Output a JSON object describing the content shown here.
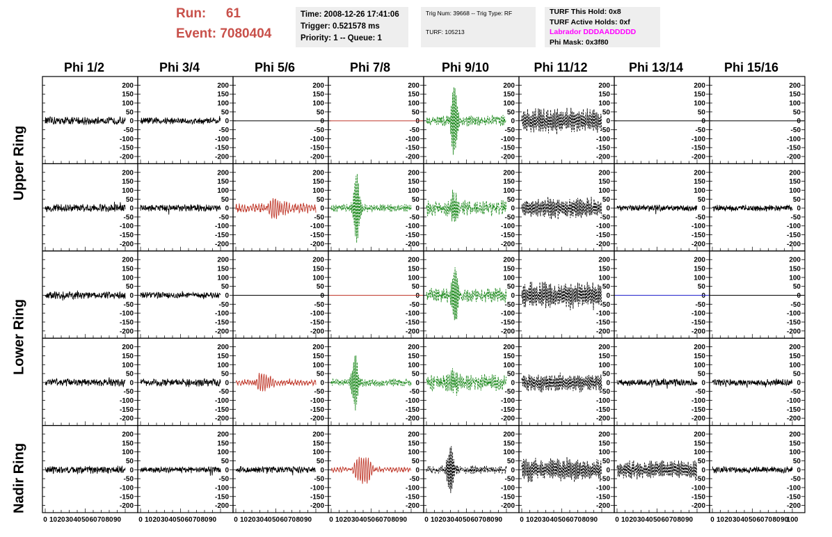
{
  "header": {
    "run_label": "Run:",
    "run_value": "61",
    "event_label": "Event:",
    "event_value": "7080404",
    "time_box": {
      "line1": "Time: 2008-12-26 17:41:06",
      "line2": "Trigger: 0.521578 ms",
      "line3": "Priority: 1 -- Queue: 1"
    },
    "trig_box": {
      "line1": "Trig Num: 39668 -- Trig Type: RF",
      "line2": "TURF: 105213"
    },
    "turf_box": {
      "line1": "TURF This Hold: 0x8",
      "line2": "TURF Active Holds: 0xf",
      "line3": "Labrador DDDAADDDDD",
      "line4": "Phi Mask: 0x3f80"
    }
  },
  "phi_headers": [
    "Phi 1/2",
    "Phi 3/4",
    "Phi 5/6",
    "Phi 7/8",
    "Phi 9/10",
    "Phi 11/12",
    "Phi 13/14",
    "Phi 15/16"
  ],
  "ring_labels": [
    "Upper Ring",
    "Lower Ring",
    "Nadir Ring"
  ],
  "colors": {
    "black": "#000000",
    "red": "#c0392b",
    "green": "#1e8a1e",
    "blue": "#2222cc",
    "run_text": "#c8504a",
    "label_magenta": "#ff00ff",
    "box_bg": "#eeeeee"
  },
  "chart_data": {
    "type": "line",
    "title": "",
    "xlabel": "",
    "ylabel": "",
    "x_range": [
      0,
      100
    ],
    "ylim": [
      -225,
      225
    ],
    "y_ticks": [
      200,
      150,
      100,
      50,
      0,
      -50,
      -100,
      -150,
      -200
    ],
    "x_ticks": [
      0,
      10,
      20,
      30,
      40,
      50,
      60,
      70,
      80,
      90,
      100
    ],
    "x_tick_labels_printed": [
      "0",
      "10",
      "20",
      "30",
      "40",
      "50",
      "60",
      "70",
      "80",
      "90",
      "100"
    ],
    "rows": 5,
    "cols": 8,
    "panels": [
      [
        {
          "color": "black",
          "style": "solid",
          "kind": "noise",
          "amp": 18
        },
        {
          "color": "black",
          "style": "solid",
          "kind": "noise",
          "amp": 16
        },
        {
          "color": "black",
          "style": "solid",
          "kind": "flat",
          "amp": 0
        },
        {
          "color": "red",
          "style": "solid",
          "kind": "flat",
          "amp": 0
        },
        {
          "color": "green",
          "style": "dashed",
          "kind": "pulse",
          "amp": 20,
          "peak": 220,
          "center": 35
        },
        {
          "color": "black",
          "style": "dashed",
          "kind": "burst",
          "amp": 60
        },
        {
          "color": "black",
          "style": "solid",
          "kind": "flat",
          "amp": 0
        },
        {
          "color": "black",
          "style": "solid",
          "kind": "flat",
          "amp": 0
        }
      ],
      [
        {
          "color": "black",
          "style": "solid",
          "kind": "noise",
          "amp": 18
        },
        {
          "color": "black",
          "style": "solid",
          "kind": "noise",
          "amp": 16
        },
        {
          "color": "red",
          "style": "solid",
          "kind": "wave",
          "amp": 30,
          "peak": 50,
          "center": 50
        },
        {
          "color": "green",
          "style": "dashed",
          "kind": "pulse",
          "amp": 14,
          "peak": 220,
          "center": 32
        },
        {
          "color": "green",
          "style": "dashed",
          "kind": "pulse",
          "amp": 28,
          "peak": 100,
          "center": 35
        },
        {
          "color": "black",
          "style": "dashed",
          "kind": "burst",
          "amp": 50
        },
        {
          "color": "black",
          "style": "solid",
          "kind": "noise",
          "amp": 14
        },
        {
          "color": "black",
          "style": "solid",
          "kind": "noise",
          "amp": 15
        }
      ],
      [
        {
          "color": "black",
          "style": "solid",
          "kind": "noise",
          "amp": 18
        },
        {
          "color": "black",
          "style": "solid",
          "kind": "noise",
          "amp": 14
        },
        {
          "color": "black",
          "style": "solid",
          "kind": "flat",
          "amp": 0
        },
        {
          "color": "red",
          "style": "solid",
          "kind": "flat",
          "amp": 0
        },
        {
          "color": "green",
          "style": "dashed",
          "kind": "pulse",
          "amp": 25,
          "peak": 200,
          "center": 36
        },
        {
          "color": "black",
          "style": "dashed",
          "kind": "burst",
          "amp": 65
        },
        {
          "color": "blue",
          "style": "solid",
          "kind": "flat",
          "amp": 0
        },
        {
          "color": "black",
          "style": "solid",
          "kind": "flat",
          "amp": 0
        }
      ],
      [
        {
          "color": "black",
          "style": "solid",
          "kind": "noise",
          "amp": 18
        },
        {
          "color": "black",
          "style": "solid",
          "kind": "noise",
          "amp": 18
        },
        {
          "color": "red",
          "style": "solid",
          "kind": "wave",
          "amp": 20,
          "peak": 50,
          "center": 35
        },
        {
          "color": "green",
          "style": "dashed",
          "kind": "pulse",
          "amp": 14,
          "peak": 160,
          "center": 30
        },
        {
          "color": "green",
          "style": "dashed",
          "kind": "pulse",
          "amp": 30,
          "peak": 70,
          "center": 35
        },
        {
          "color": "black",
          "style": "dashed",
          "kind": "burst",
          "amp": 45
        },
        {
          "color": "black",
          "style": "solid",
          "kind": "noise",
          "amp": 16
        },
        {
          "color": "black",
          "style": "solid",
          "kind": "noise",
          "amp": 15
        }
      ],
      [
        {
          "color": "black",
          "style": "solid",
          "kind": "noise",
          "amp": 18
        },
        {
          "color": "black",
          "style": "solid",
          "kind": "noise",
          "amp": 14
        },
        {
          "color": "black",
          "style": "solid",
          "kind": "noise",
          "amp": 15
        },
        {
          "color": "red",
          "style": "solid",
          "kind": "wave",
          "amp": 16,
          "peak": 80,
          "center": 40
        },
        {
          "color": "black",
          "style": "dashed",
          "kind": "pulse",
          "amp": 15,
          "peak": 150,
          "center": 30
        },
        {
          "color": "black",
          "style": "dashed",
          "kind": "burst",
          "amp": 55
        },
        {
          "color": "black",
          "style": "dashed",
          "kind": "burst",
          "amp": 45
        },
        {
          "color": "black",
          "style": "solid",
          "kind": "noise",
          "amp": 15
        }
      ]
    ]
  }
}
